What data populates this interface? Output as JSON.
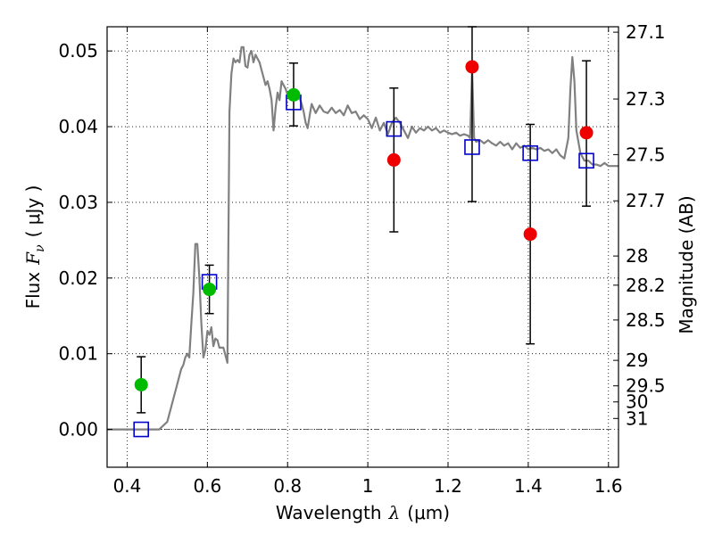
{
  "chart_data": {
    "type": "scatter",
    "title": "",
    "xlabel": "Wavelength",
    "xlabel_symbol": "λ",
    "xlabel_unit": "(μm)",
    "ylabel": "Flux",
    "ylabel_symbol": "F",
    "ylabel_sub": "ν",
    "ylabel_unit": "( μJy )",
    "y2label": "Magnitude (AB)",
    "xlim": [
      0.35,
      1.625
    ],
    "ylim": [
      -0.005,
      0.0532
    ],
    "grid": true,
    "x_ticks": [
      0.4,
      0.6,
      0.8,
      1.0,
      1.2,
      1.4,
      1.6
    ],
    "x_tick_labels": [
      "0.4",
      "0.6",
      "0.8",
      "1",
      "1.2",
      "1.4",
      "1.6"
    ],
    "y_ticks": [
      0.0,
      0.01,
      0.02,
      0.03,
      0.04,
      0.05
    ],
    "y_tick_labels": [
      "0.00",
      "0.01",
      "0.02",
      "0.03",
      "0.04",
      "0.05"
    ],
    "y2_ticks": [
      {
        "label": "27.1",
        "mag": 27.1
      },
      {
        "label": "27.3",
        "mag": 27.3
      },
      {
        "label": "27.5",
        "mag": 27.5
      },
      {
        "label": "27.7",
        "mag": 27.7
      },
      {
        "label": "28",
        "mag": 28.0
      },
      {
        "label": "28.2",
        "mag": 28.2
      },
      {
        "label": "28.5",
        "mag": 28.5
      },
      {
        "label": "29",
        "mag": 29.0
      },
      {
        "label": "29.5",
        "mag": 29.5
      },
      {
        "label": "30",
        "mag": 30.0
      },
      {
        "label": "31",
        "mag": 31.0
      }
    ],
    "zero_line": 0.0,
    "model_spectrum": {
      "color": "#808080",
      "points": [
        [
          0.35,
          0.0
        ],
        [
          0.48,
          0.0
        ],
        [
          0.5,
          0.001
        ],
        [
          0.52,
          0.005
        ],
        [
          0.535,
          0.008
        ],
        [
          0.54,
          0.0085
        ],
        [
          0.545,
          0.0095
        ],
        [
          0.55,
          0.01
        ],
        [
          0.555,
          0.0095
        ],
        [
          0.56,
          0.014
        ],
        [
          0.565,
          0.018
        ],
        [
          0.57,
          0.0245
        ],
        [
          0.575,
          0.0245
        ],
        [
          0.58,
          0.02
        ],
        [
          0.585,
          0.014
        ],
        [
          0.59,
          0.0095
        ],
        [
          0.595,
          0.0105
        ],
        [
          0.6,
          0.013
        ],
        [
          0.605,
          0.0125
        ],
        [
          0.61,
          0.0135
        ],
        [
          0.615,
          0.011
        ],
        [
          0.62,
          0.012
        ],
        [
          0.625,
          0.0118
        ],
        [
          0.63,
          0.0108
        ],
        [
          0.64,
          0.0108
        ],
        [
          0.65,
          0.0088
        ],
        [
          0.655,
          0.042
        ],
        [
          0.66,
          0.047
        ],
        [
          0.665,
          0.049
        ],
        [
          0.67,
          0.0485
        ],
        [
          0.675,
          0.0488
        ],
        [
          0.68,
          0.0485
        ],
        [
          0.685,
          0.0505
        ],
        [
          0.69,
          0.0505
        ],
        [
          0.695,
          0.048
        ],
        [
          0.7,
          0.0478
        ],
        [
          0.705,
          0.0495
        ],
        [
          0.71,
          0.05
        ],
        [
          0.715,
          0.0485
        ],
        [
          0.72,
          0.0495
        ],
        [
          0.725,
          0.049
        ],
        [
          0.73,
          0.0485
        ],
        [
          0.735,
          0.0475
        ],
        [
          0.74,
          0.0465
        ],
        [
          0.745,
          0.0455
        ],
        [
          0.75,
          0.046
        ],
        [
          0.755,
          0.045
        ],
        [
          0.76,
          0.0435
        ],
        [
          0.765,
          0.0395
        ],
        [
          0.77,
          0.0425
        ],
        [
          0.775,
          0.0445
        ],
        [
          0.78,
          0.0435
        ],
        [
          0.785,
          0.046
        ],
        [
          0.79,
          0.0455
        ],
        [
          0.795,
          0.045
        ],
        [
          0.8,
          0.0442
        ],
        [
          0.81,
          0.044
        ],
        [
          0.82,
          0.0435
        ],
        [
          0.83,
          0.0438
        ],
        [
          0.835,
          0.043
        ],
        [
          0.84,
          0.042
        ],
        [
          0.845,
          0.0405
        ],
        [
          0.85,
          0.0398
        ],
        [
          0.855,
          0.0415
        ],
        [
          0.86,
          0.043
        ],
        [
          0.87,
          0.0418
        ],
        [
          0.88,
          0.0428
        ],
        [
          0.89,
          0.042
        ],
        [
          0.9,
          0.0418
        ],
        [
          0.91,
          0.0425
        ],
        [
          0.92,
          0.0418
        ],
        [
          0.93,
          0.0422
        ],
        [
          0.94,
          0.0415
        ],
        [
          0.95,
          0.0428
        ],
        [
          0.96,
          0.0418
        ],
        [
          0.97,
          0.042
        ],
        [
          0.98,
          0.041
        ],
        [
          0.99,
          0.0415
        ],
        [
          1.0,
          0.041
        ],
        [
          1.01,
          0.0398
        ],
        [
          1.02,
          0.0412
        ],
        [
          1.03,
          0.0395
        ],
        [
          1.04,
          0.0405
        ],
        [
          1.05,
          0.039
        ],
        [
          1.06,
          0.0405
        ],
        [
          1.07,
          0.0412
        ],
        [
          1.08,
          0.0405
        ],
        [
          1.09,
          0.0395
        ],
        [
          1.1,
          0.0385
        ],
        [
          1.11,
          0.04
        ],
        [
          1.12,
          0.0392
        ],
        [
          1.13,
          0.0398
        ],
        [
          1.14,
          0.0395
        ],
        [
          1.15,
          0.04
        ],
        [
          1.16,
          0.0395
        ],
        [
          1.17,
          0.0398
        ],
        [
          1.18,
          0.0392
        ],
        [
          1.19,
          0.0395
        ],
        [
          1.2,
          0.0392
        ],
        [
          1.21,
          0.039
        ],
        [
          1.22,
          0.0392
        ],
        [
          1.23,
          0.0388
        ],
        [
          1.24,
          0.039
        ],
        [
          1.25,
          0.0388
        ],
        [
          1.255,
          0.0385
        ],
        [
          1.26,
          0.0475
        ],
        [
          1.265,
          0.0385
        ],
        [
          1.27,
          0.038
        ],
        [
          1.28,
          0.0382
        ],
        [
          1.29,
          0.0378
        ],
        [
          1.3,
          0.0382
        ],
        [
          1.31,
          0.0378
        ],
        [
          1.32,
          0.0375
        ],
        [
          1.33,
          0.038
        ],
        [
          1.34,
          0.0375
        ],
        [
          1.35,
          0.0378
        ],
        [
          1.36,
          0.037
        ],
        [
          1.37,
          0.0378
        ],
        [
          1.38,
          0.0372
        ],
        [
          1.39,
          0.0375
        ],
        [
          1.4,
          0.037
        ],
        [
          1.41,
          0.0372
        ],
        [
          1.42,
          0.037
        ],
        [
          1.43,
          0.0372
        ],
        [
          1.44,
          0.0368
        ],
        [
          1.45,
          0.037
        ],
        [
          1.46,
          0.0365
        ],
        [
          1.47,
          0.037
        ],
        [
          1.48,
          0.0362
        ],
        [
          1.49,
          0.0358
        ],
        [
          1.5,
          0.0385
        ],
        [
          1.505,
          0.045
        ],
        [
          1.51,
          0.0492
        ],
        [
          1.515,
          0.046
        ],
        [
          1.52,
          0.0395
        ],
        [
          1.53,
          0.0365
        ],
        [
          1.54,
          0.0355
        ],
        [
          1.55,
          0.0355
        ],
        [
          1.56,
          0.035
        ],
        [
          1.57,
          0.035
        ],
        [
          1.58,
          0.0348
        ],
        [
          1.59,
          0.0352
        ],
        [
          1.6,
          0.0348
        ],
        [
          1.625,
          0.0348
        ]
      ]
    },
    "series": [
      {
        "marker": "square-open",
        "color": "#0000cc",
        "points": [
          {
            "x": 0.435,
            "y": 0.0
          },
          {
            "x": 0.605,
            "y": 0.0195
          },
          {
            "x": 0.815,
            "y": 0.0432
          },
          {
            "x": 1.065,
            "y": 0.0397
          },
          {
            "x": 1.26,
            "y": 0.0373
          },
          {
            "x": 1.405,
            "y": 0.0365
          },
          {
            "x": 1.545,
            "y": 0.0355
          }
        ]
      },
      {
        "marker": "circle",
        "color": "#00bb00",
        "points": [
          {
            "x": 0.435,
            "y": 0.0059,
            "err": [
              0.0022,
              0.0096
            ]
          },
          {
            "x": 0.605,
            "y": 0.0185,
            "err": [
              0.0153,
              0.0217
            ]
          },
          {
            "x": 0.815,
            "y": 0.0442,
            "err": [
              0.0401,
              0.0484
            ]
          }
        ]
      },
      {
        "marker": "circle",
        "color": "#ee0000",
        "points": [
          {
            "x": 1.065,
            "y": 0.0356,
            "err": [
              0.0261,
              0.0451
            ]
          },
          {
            "x": 1.26,
            "y": 0.0479,
            "err": [
              0.0301,
              0.0532
            ]
          },
          {
            "x": 1.405,
            "y": 0.0258,
            "err": [
              0.0113,
              0.0403
            ]
          },
          {
            "x": 1.545,
            "y": 0.0392,
            "err": [
              0.0295,
              0.0487
            ]
          }
        ]
      }
    ]
  }
}
